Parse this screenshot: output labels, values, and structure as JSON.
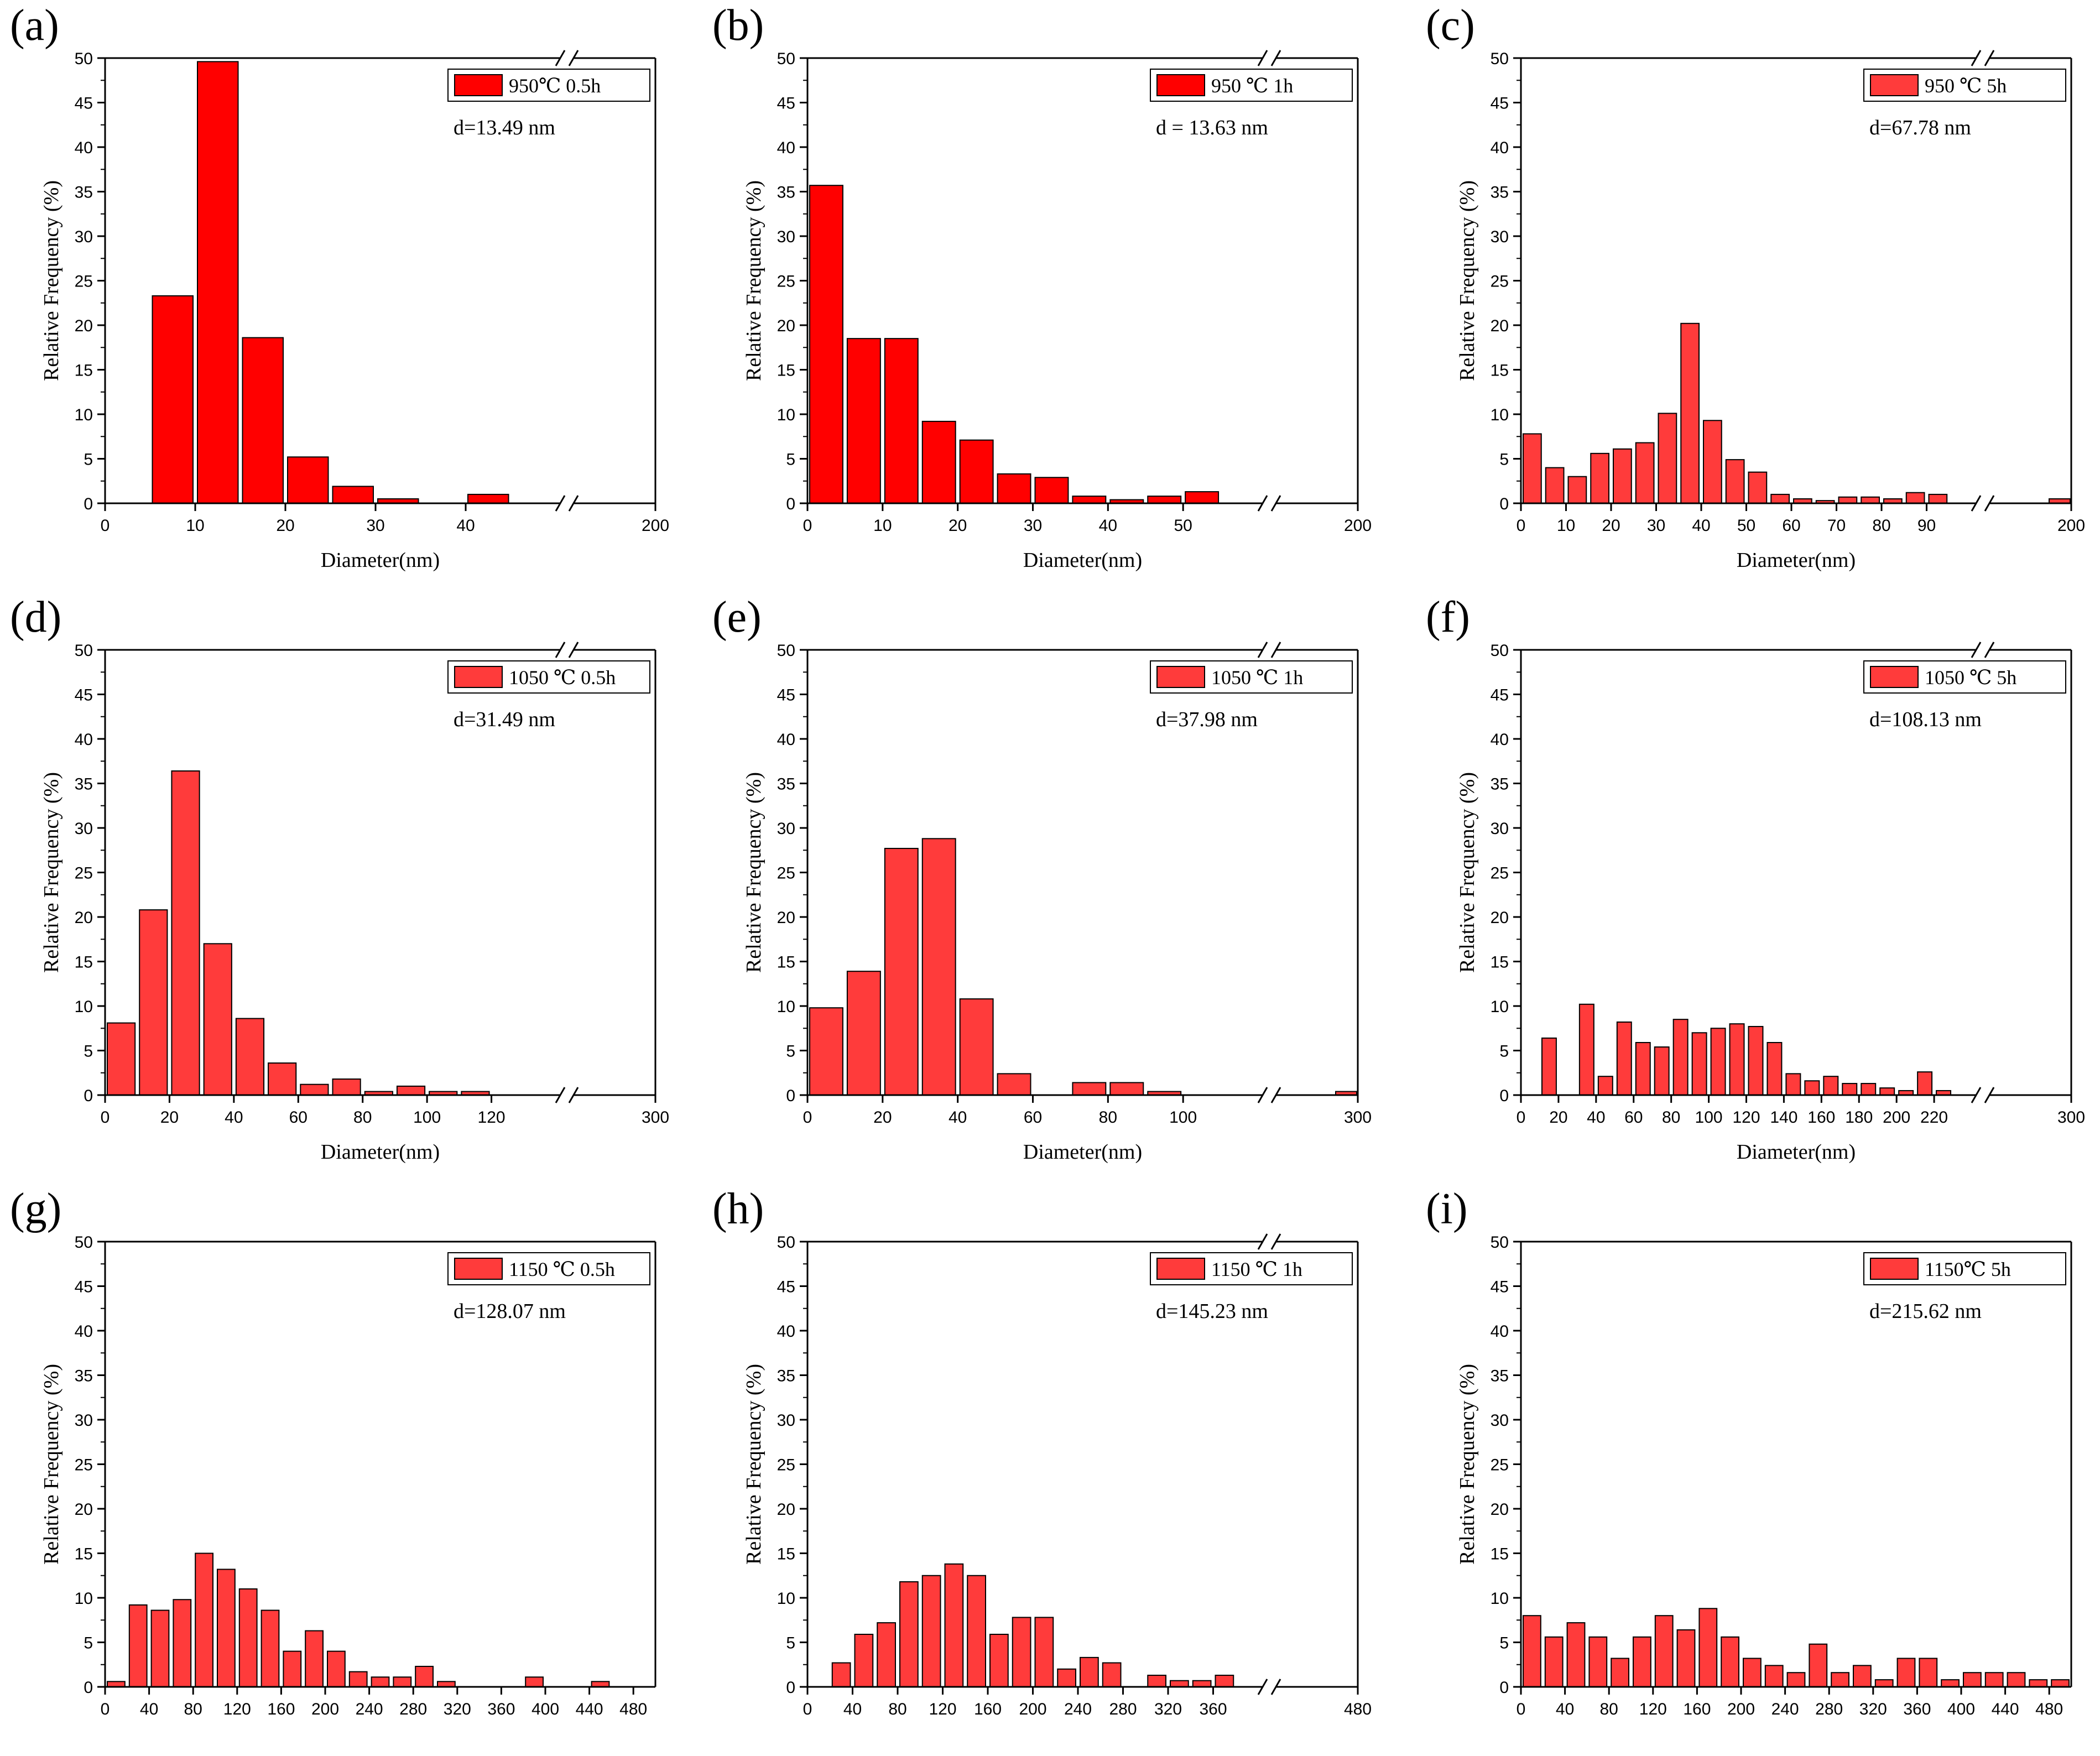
{
  "figure": {
    "bar_color": "#ff3b3b",
    "bar_color_dark": "#ff0000",
    "edge_color": "#000000"
  },
  "chart_data": [
    {
      "type": "bar",
      "panel_label": "(a)",
      "legend": "950℃ 0.5h",
      "annotation": "d=13.49 nm",
      "xlabel": "Diameter(nm)",
      "ylabel": "Relative Frequency (%)",
      "ylim": [
        0,
        50
      ],
      "yticks": [
        0,
        5,
        10,
        15,
        20,
        25,
        30,
        35,
        40,
        45,
        50
      ],
      "xlim": [
        0,
        50
      ],
      "xticks": [
        0,
        10,
        20,
        30,
        40
      ],
      "axis_break": {
        "at": 50,
        "after_label": "200"
      },
      "bin_width": 5,
      "x": [
        7.5,
        12.5,
        17.5,
        22.5,
        27.5,
        32.5,
        37.5,
        42.5
      ],
      "values": [
        23.3,
        49.6,
        18.6,
        5.2,
        1.9,
        0.5,
        0,
        1.0
      ]
    },
    {
      "type": "bar",
      "panel_label": "(b)",
      "legend": "950 ℃ 1h",
      "annotation": "d = 13.63 nm",
      "xlabel": "Diameter(nm)",
      "ylabel": "Relative Frequency (%)",
      "ylim": [
        0,
        50
      ],
      "yticks": [
        0,
        5,
        10,
        15,
        20,
        25,
        30,
        35,
        40,
        45,
        50
      ],
      "xlim": [
        0,
        60
      ],
      "xticks": [
        0,
        10,
        20,
        30,
        40,
        50
      ],
      "axis_break": {
        "at": 60,
        "after_label": "200"
      },
      "bin_width": 5,
      "x": [
        2.5,
        7.5,
        12.5,
        17.5,
        22.5,
        27.5,
        32.5,
        37.5,
        42.5,
        47.5,
        52.5
      ],
      "values": [
        35.7,
        18.5,
        18.5,
        9.2,
        7.1,
        3.3,
        2.9,
        0.8,
        0.4,
        0.8,
        1.3
      ]
    },
    {
      "type": "bar",
      "panel_label": "(c)",
      "legend": "950 ℃ 5h",
      "annotation": "d=67.78 nm",
      "xlabel": "Diameter(nm)",
      "ylabel": "Relative Frequency (%)",
      "ylim": [
        0,
        50
      ],
      "yticks": [
        0,
        5,
        10,
        15,
        20,
        25,
        30,
        35,
        40,
        45,
        50
      ],
      "xlim": [
        0,
        100
      ],
      "xticks": [
        0,
        10,
        20,
        30,
        40,
        50,
        60,
        70,
        80,
        90
      ],
      "axis_break": {
        "at": 100,
        "after_label": "200"
      },
      "bin_width": 5,
      "x": [
        2.5,
        7.5,
        12.5,
        17.5,
        22.5,
        27.5,
        32.5,
        37.5,
        42.5,
        47.5,
        52.5,
        57.5,
        62.5,
        67.5,
        72.5,
        77.5,
        82.5,
        87.5,
        92.5
      ],
      "values": [
        7.8,
        4.0,
        3.0,
        5.6,
        6.1,
        6.8,
        10.1,
        20.2,
        9.3,
        4.9,
        3.5,
        1.0,
        0.5,
        0.3,
        0.7,
        0.7,
        0.5,
        1.2,
        1.0
      ],
      "after_break_values": [
        0.5
      ]
    },
    {
      "type": "bar",
      "panel_label": "(d)",
      "legend": "1050 ℃ 0.5h",
      "annotation": "d=31.49 nm",
      "xlabel": "Diameter(nm)",
      "ylabel": "Relative Frequency (%)",
      "ylim": [
        0,
        50
      ],
      "yticks": [
        0,
        5,
        10,
        15,
        20,
        25,
        30,
        35,
        40,
        45,
        50
      ],
      "xlim": [
        0,
        140
      ],
      "xticks": [
        0,
        20,
        40,
        60,
        80,
        100,
        120
      ],
      "axis_break": {
        "at": 140,
        "after_label": "300"
      },
      "bin_width": 10,
      "x": [
        5,
        15,
        25,
        35,
        45,
        55,
        65,
        75,
        85,
        95,
        105,
        115
      ],
      "values": [
        8.1,
        20.8,
        36.4,
        17.0,
        8.6,
        3.6,
        1.2,
        1.8,
        0.4,
        1.0,
        0.4,
        0.4
      ]
    },
    {
      "type": "bar",
      "panel_label": "(e)",
      "legend": "1050 ℃ 1h",
      "annotation": "d=37.98 nm",
      "xlabel": "Diameter(nm)",
      "ylabel": "Relative Frequency (%)",
      "ylim": [
        0,
        50
      ],
      "yticks": [
        0,
        5,
        10,
        15,
        20,
        25,
        30,
        35,
        40,
        45,
        50
      ],
      "xlim": [
        0,
        120
      ],
      "xticks": [
        0,
        20,
        40,
        60,
        80,
        100
      ],
      "axis_break": {
        "at": 120,
        "after_label": "300"
      },
      "bin_width": 10,
      "x": [
        5,
        15,
        25,
        35,
        45,
        55,
        65,
        75,
        85,
        95
      ],
      "values": [
        9.8,
        13.9,
        27.7,
        28.8,
        10.8,
        2.4,
        0,
        1.4,
        1.4,
        0.4
      ],
      "after_break_values": [
        0.4
      ]
    },
    {
      "type": "bar",
      "panel_label": "(f)",
      "legend": "1050 ℃ 5h",
      "annotation": "d=108.13 nm",
      "xlabel": "Diameter(nm)",
      "ylabel": "Relative Frequency (%)",
      "ylim": [
        0,
        50
      ],
      "yticks": [
        0,
        5,
        10,
        15,
        20,
        25,
        30,
        35,
        40,
        45,
        50
      ],
      "xlim": [
        0,
        240
      ],
      "xticks": [
        0,
        20,
        40,
        60,
        80,
        100,
        120,
        140,
        160,
        180,
        200,
        220
      ],
      "axis_break": {
        "at": 240,
        "after_label": "300"
      },
      "bin_width": 10,
      "x": [
        15,
        25,
        35,
        45,
        55,
        65,
        75,
        85,
        95,
        105,
        115,
        125,
        135,
        145,
        155,
        165,
        175,
        185,
        195,
        205,
        215,
        225
      ],
      "values": [
        6.4,
        0,
        10.2,
        2.1,
        8.2,
        5.9,
        5.4,
        8.5,
        7.0,
        7.5,
        8.0,
        7.7,
        5.9,
        2.4,
        1.6,
        2.1,
        1.3,
        1.3,
        0.8,
        0.5,
        2.6,
        0.5
      ]
    },
    {
      "type": "bar",
      "panel_label": "(g)",
      "legend": "1150 ℃ 0.5h",
      "annotation": "d=128.07 nm",
      "xlabel": "",
      "ylabel": "Relative Frequency (%)",
      "ylim": [
        0,
        50
      ],
      "yticks": [
        0,
        5,
        10,
        15,
        20,
        25,
        30,
        35,
        40,
        45,
        50
      ],
      "xlim": [
        0,
        500
      ],
      "xticks": [
        0,
        40,
        80,
        120,
        160,
        200,
        240,
        280,
        320,
        360,
        400,
        440,
        480
      ],
      "bin_width": 20,
      "x": [
        10,
        30,
        50,
        70,
        90,
        110,
        130,
        150,
        170,
        190,
        210,
        230,
        250,
        270,
        290,
        310,
        330,
        350,
        370,
        390,
        410,
        430,
        450,
        470,
        490
      ],
      "values": [
        0.6,
        9.2,
        8.6,
        9.8,
        15.0,
        13.2,
        11.0,
        8.6,
        4.0,
        6.3,
        4.0,
        1.7,
        1.1,
        1.1,
        2.3,
        0.6,
        0,
        0,
        0,
        1.1,
        0,
        0,
        0.6,
        0,
        0
      ]
    },
    {
      "type": "bar",
      "panel_label": "(h)",
      "legend": "1150 ℃ 1h",
      "annotation": "d=145.23 nm",
      "xlabel": "",
      "ylabel": "Relative Frequency (%)",
      "ylim": [
        0,
        50
      ],
      "yticks": [
        0,
        5,
        10,
        15,
        20,
        25,
        30,
        35,
        40,
        45,
        50
      ],
      "xlim": [
        0,
        400
      ],
      "xticks": [
        0,
        40,
        80,
        120,
        160,
        200,
        240,
        280,
        320,
        360
      ],
      "axis_break": {
        "at": 400,
        "after_label": "480"
      },
      "bin_width": 20,
      "x": [
        10,
        30,
        50,
        70,
        90,
        110,
        130,
        150,
        170,
        190,
        210,
        230,
        250,
        270,
        290,
        310,
        330,
        350,
        370
      ],
      "values": [
        0,
        2.7,
        5.9,
        7.2,
        11.8,
        12.5,
        13.8,
        12.5,
        5.9,
        7.8,
        7.8,
        2.0,
        3.3,
        2.7,
        0,
        1.3,
        0.7,
        0.7,
        1.3
      ]
    },
    {
      "type": "bar",
      "panel_label": "(i)",
      "legend": "1150℃ 5h",
      "annotation": "d=215.62 nm",
      "xlabel": "",
      "ylabel": "Relative Frequency (%)",
      "ylim": [
        0,
        50
      ],
      "yticks": [
        0,
        5,
        10,
        15,
        20,
        25,
        30,
        35,
        40,
        45,
        50
      ],
      "xlim": [
        0,
        500
      ],
      "xticks": [
        0,
        40,
        80,
        120,
        160,
        200,
        240,
        280,
        320,
        360,
        400,
        440,
        480
      ],
      "bin_width": 20,
      "x": [
        10,
        30,
        50,
        70,
        90,
        110,
        130,
        150,
        170,
        190,
        210,
        230,
        250,
        270,
        290,
        310,
        330,
        350,
        370,
        390,
        410,
        430,
        450,
        470,
        490
      ],
      "values": [
        8.0,
        5.6,
        7.2,
        5.6,
        3.2,
        5.6,
        8.0,
        6.4,
        8.8,
        5.6,
        3.2,
        2.4,
        1.6,
        4.8,
        1.6,
        2.4,
        0.8,
        3.2,
        3.2,
        0.8,
        1.6,
        1.6,
        1.6,
        0.8,
        0.8
      ]
    }
  ]
}
